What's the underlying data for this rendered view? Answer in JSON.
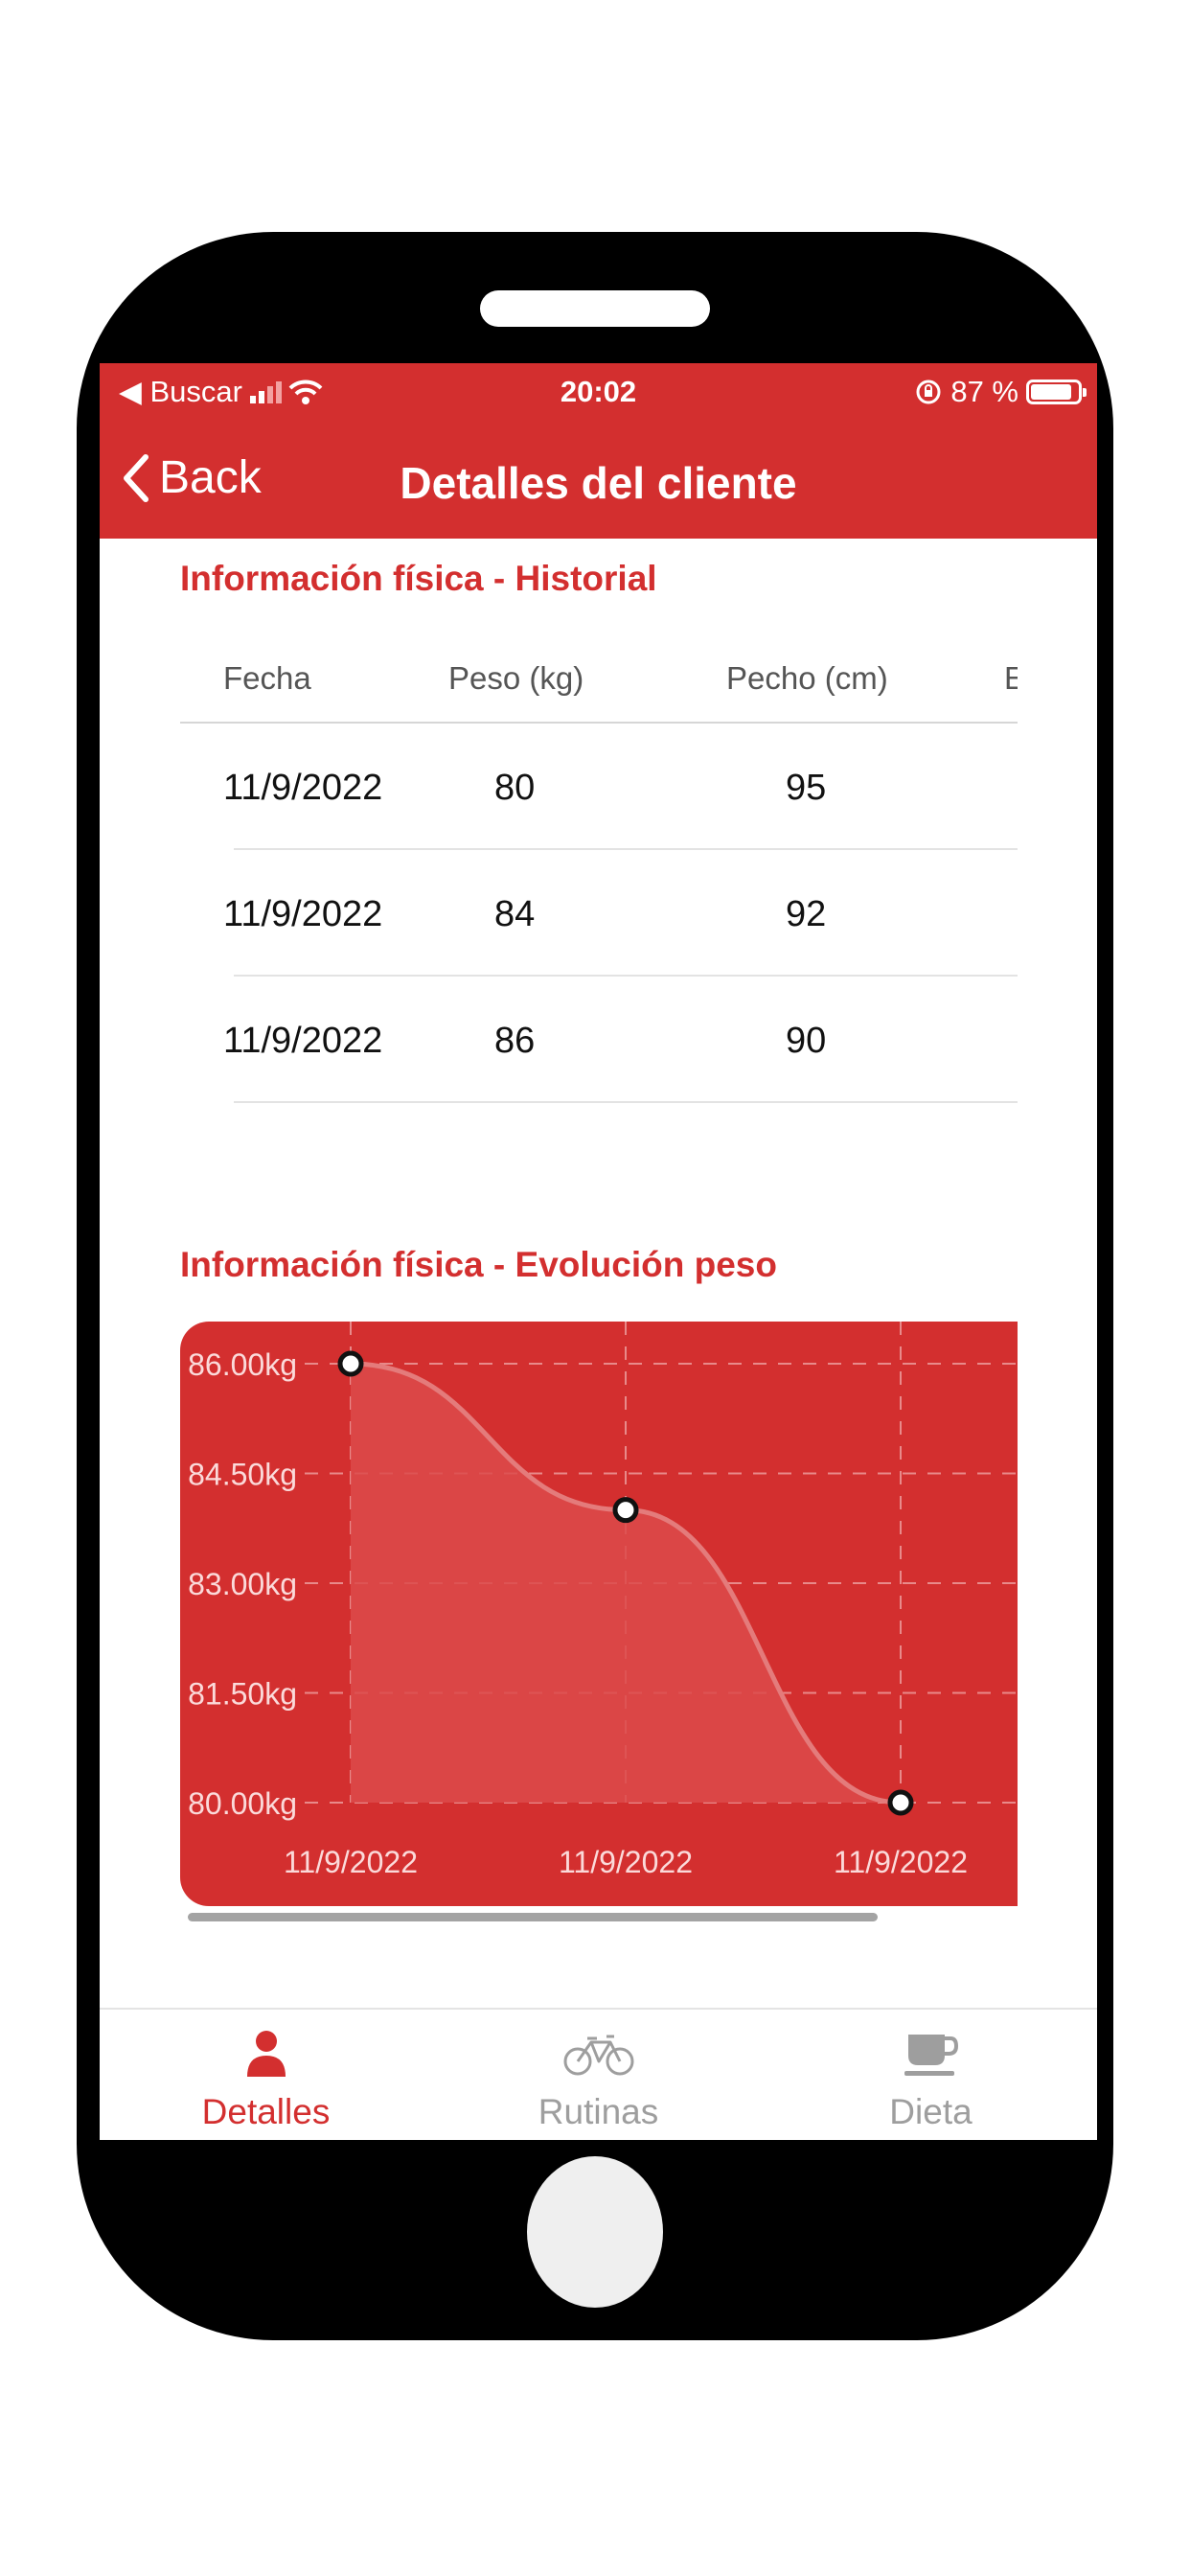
{
  "status_bar": {
    "back_app": "◀ Buscar",
    "time": "20:02",
    "battery_percent": "87 %",
    "battery_level": 0.87
  },
  "nav": {
    "back_label": "Back",
    "title": "Detalles del cliente"
  },
  "history": {
    "title": "Información física - Historial",
    "columns": [
      "Fecha",
      "Peso (kg)",
      "Pecho (cm)",
      "E"
    ],
    "rows": [
      [
        "11/9/2022",
        "80",
        "95"
      ],
      [
        "11/9/2022",
        "84",
        "92"
      ],
      [
        "11/9/2022",
        "86",
        "90"
      ]
    ]
  },
  "evolution": {
    "title": "Información física - Evolución peso"
  },
  "chart_data": {
    "type": "area",
    "title": "",
    "xlabel": "",
    "ylabel": "",
    "categories": [
      "11/9/2022",
      "11/9/2022",
      "11/9/2022"
    ],
    "series": [
      {
        "values": [
          86,
          84,
          80
        ]
      }
    ],
    "yticks": [
      "86.00kg",
      "84.50kg",
      "83.00kg",
      "81.50kg",
      "80.00kg"
    ],
    "ylim": [
      80,
      86
    ],
    "grid": true,
    "colors": {
      "background": "#d32f2f",
      "line": "#e47b7b",
      "fill": "#dc4a4a",
      "grid": "#e88a8a",
      "label": "#fbdada"
    }
  },
  "tabs": [
    {
      "label": "Detalles",
      "icon": "person-icon",
      "active": true
    },
    {
      "label": "Rutinas",
      "icon": "bicycle-icon",
      "active": false
    },
    {
      "label": "Dieta",
      "icon": "coffee-cup-icon",
      "active": false
    }
  ],
  "colors": {
    "accent": "#d32f2f",
    "inactive": "#9e9e9e"
  }
}
